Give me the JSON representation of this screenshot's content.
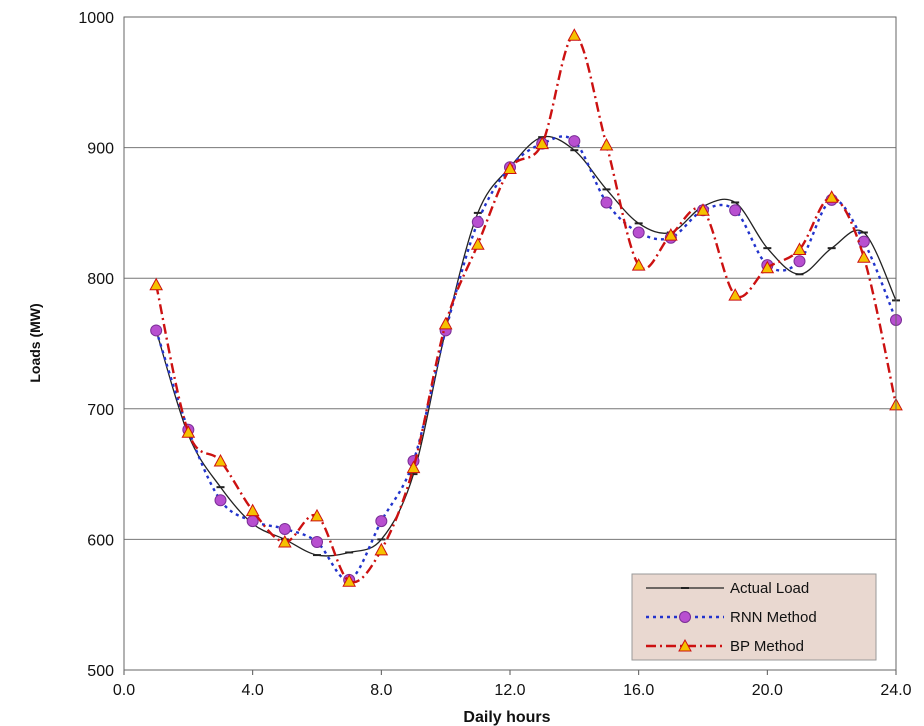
{
  "chart_data": {
    "type": "line",
    "title": "",
    "xlabel": "Daily hours",
    "ylabel": "Loads (MW)",
    "xlim": [
      0,
      24
    ],
    "ylim": [
      500,
      1000
    ],
    "x_ticks": [
      0,
      4,
      8,
      12,
      16,
      20,
      24
    ],
    "x_tick_labels": [
      "0.0",
      "4.0",
      "8.0",
      "12.0",
      "16.0",
      "20.0",
      "24.0"
    ],
    "y_ticks": [
      500,
      600,
      700,
      800,
      900,
      1000
    ],
    "y_tick_labels": [
      "500",
      "600",
      "700",
      "800",
      "900",
      "1000"
    ],
    "grid": "horizontal",
    "legend_position": "bottom-right",
    "series": [
      {
        "name": "Actual Load",
        "color": "#222222",
        "style": "solid",
        "marker": "dash",
        "x": [
          1,
          2,
          3,
          4,
          5,
          6,
          7,
          8,
          9,
          10,
          11,
          12,
          13,
          14,
          15,
          16,
          17,
          18,
          19,
          20,
          21,
          22,
          23,
          24
        ],
        "y": [
          760,
          680,
          640,
          612,
          600,
          588,
          590,
          600,
          650,
          760,
          850,
          885,
          908,
          898,
          868,
          842,
          835,
          855,
          858,
          823,
          803,
          823,
          835,
          783
        ]
      },
      {
        "name": "RNN Method",
        "color": "#2233cc",
        "style": "dotted",
        "marker": "circle",
        "marker_color": "#b84fd0",
        "x": [
          1,
          2,
          3,
          4,
          5,
          6,
          7,
          8,
          9,
          10,
          11,
          12,
          13,
          14,
          15,
          16,
          17,
          18,
          19,
          20,
          21,
          22,
          23,
          24
        ],
        "y": [
          760,
          684,
          630,
          614,
          608,
          598,
          569,
          614,
          660,
          760,
          843,
          885,
          903,
          905,
          858,
          835,
          831,
          852,
          852,
          810,
          813,
          860,
          828,
          768
        ]
      },
      {
        "name": "BP Method",
        "color": "#cc1111",
        "style": "dashdot",
        "marker": "triangle",
        "marker_color": "#f5c200",
        "x": [
          1,
          2,
          3,
          4,
          5,
          6,
          7,
          8,
          9,
          10,
          11,
          12,
          13,
          14,
          15,
          16,
          17,
          18,
          19,
          20,
          21,
          22,
          23,
          24
        ],
        "y": [
          795,
          682,
          660,
          622,
          598,
          618,
          568,
          592,
          655,
          765,
          826,
          884,
          903,
          986,
          902,
          810,
          833,
          852,
          787,
          808,
          822,
          862,
          816,
          703
        ]
      }
    ]
  }
}
